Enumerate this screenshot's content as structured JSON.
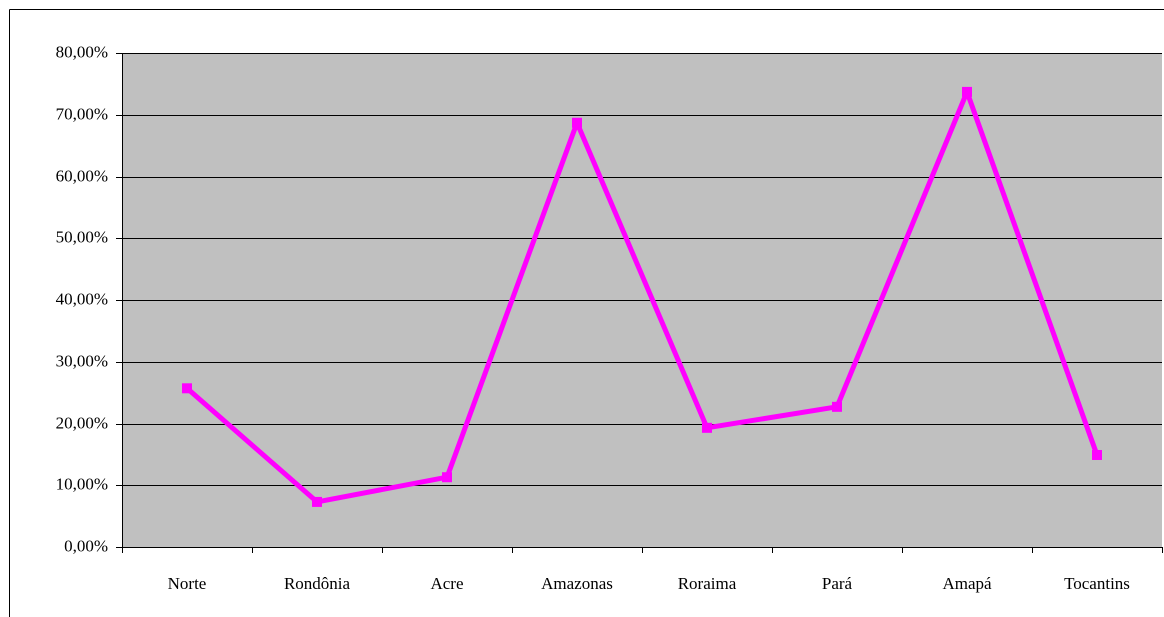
{
  "chart_data": {
    "type": "line",
    "categories": [
      "Norte",
      "Rondônia",
      "Acre",
      "Amazonas",
      "Roraima",
      "Pará",
      "Amapá",
      "Tocantins"
    ],
    "series": [
      {
        "color": "#ff00ff",
        "values": [
          25.7,
          7.3,
          11.3,
          68.7,
          19.3,
          22.7,
          73.7,
          14.9
        ]
      }
    ],
    "ylim": [
      0,
      80
    ],
    "yticks": [
      {
        "value": 0,
        "label": "0,00%"
      },
      {
        "value": 10,
        "label": "10,00%"
      },
      {
        "value": 20,
        "label": "20,00%"
      },
      {
        "value": 30,
        "label": "30,00%"
      },
      {
        "value": 40,
        "label": "40,00%"
      },
      {
        "value": 50,
        "label": "50,00%"
      },
      {
        "value": 60,
        "label": "60,00%"
      },
      {
        "value": 70,
        "label": "70,00%"
      },
      {
        "value": 80,
        "label": "80,00%"
      }
    ],
    "grid": true,
    "background": "#c0c0c0"
  }
}
